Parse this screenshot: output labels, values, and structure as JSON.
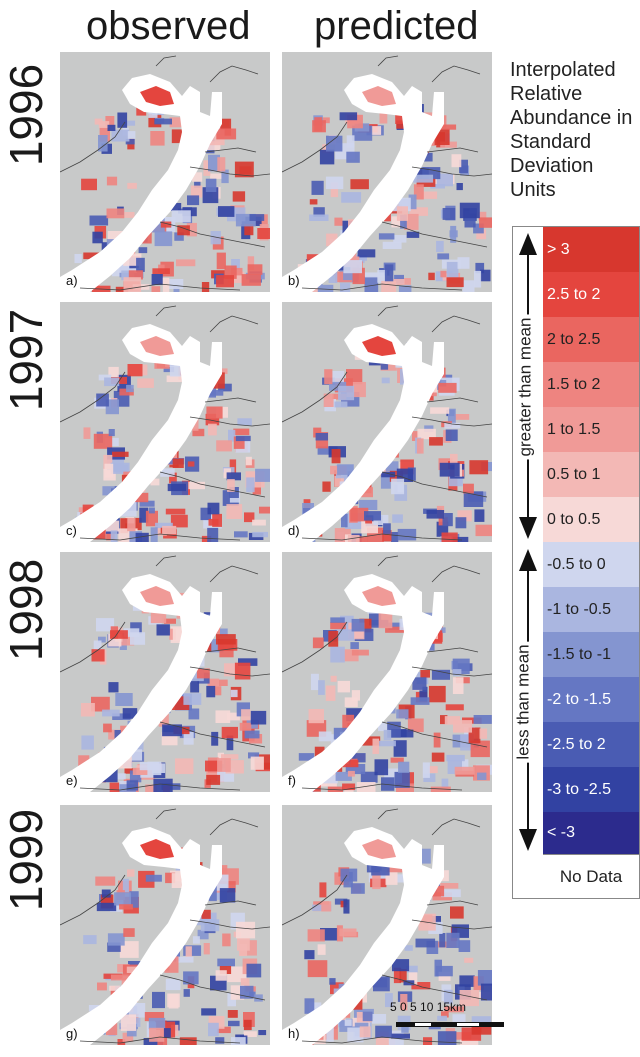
{
  "column_headers": [
    "observed",
    "predicted"
  ],
  "years": [
    "1996",
    "1997",
    "1998",
    "1999"
  ],
  "map_letters": [
    "a)",
    "b)",
    "c)",
    "d)",
    "e)",
    "f)",
    "g)",
    "h)"
  ],
  "legend": {
    "title": "Interpolated Relative Abundance in Standard Deviation Units",
    "greater_label": "greater than mean",
    "less_label": "less than mean",
    "classes": [
      {
        "label": "> 3",
        "color": "#d7372e"
      },
      {
        "label": "2.5 to 2",
        "color": "#e4453e"
      },
      {
        "label": "2 to 2.5",
        "color": "#ea6660"
      },
      {
        "label": "1.5 to 2",
        "color": "#ee8480"
      },
      {
        "label": "1 to 1.5",
        "color": "#f09a97"
      },
      {
        "label": "0.5 to 1",
        "color": "#f3b8b5"
      },
      {
        "label": "0 to 0.5",
        "color": "#f7d9d7"
      },
      {
        "label": "-0.5 to 0",
        "color": "#cfd6ee"
      },
      {
        "label": "-1 to -0.5",
        "color": "#aab6e0"
      },
      {
        "label": "-1.5 to -1",
        "color": "#8495d0"
      },
      {
        "label": "-2 to -1.5",
        "color": "#6577c3"
      },
      {
        "label": "-2.5 to 2",
        "color": "#4a5cb3"
      },
      {
        "label": "-3 to -2.5",
        "color": "#3242a2"
      },
      {
        "label": "< -3",
        "color": "#2c2b8d"
      }
    ],
    "no_data": "No Data"
  },
  "scale_bar": {
    "labels": "5  0   5  10  15km"
  },
  "colors": {
    "land": "#c8c9c9",
    "water": "#ffffff",
    "coast": "#444444"
  }
}
